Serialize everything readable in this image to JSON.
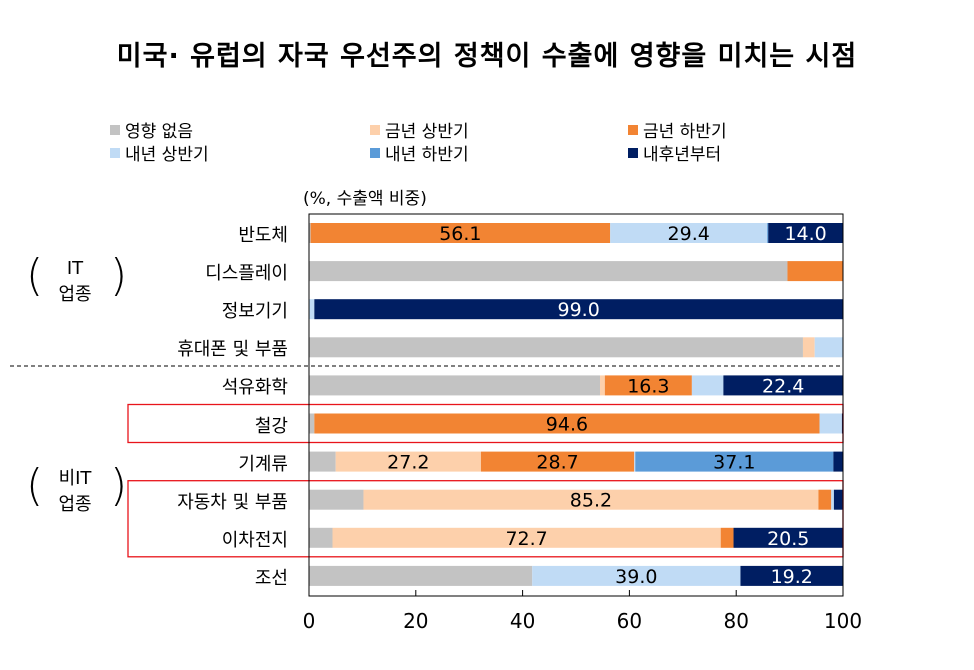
{
  "chart_data": {
    "type": "bar",
    "orientation": "horizontal",
    "stacked": true,
    "title": "미국· 유럽의 자국 우선주의 정책이 수출에 영향을 미치는 시점",
    "unit_label": "(%, 수출액 비중)",
    "xlim": [
      0,
      100
    ],
    "xticks": [
      0,
      20,
      40,
      60,
      80,
      100
    ],
    "grid": false,
    "legend_position": "top",
    "categories": [
      "반도체",
      "디스플레이",
      "정보기기",
      "휴대폰 및 부품",
      "석유화학",
      "철강",
      "기계류",
      "자동차 및 부품",
      "이차전지",
      "조선"
    ],
    "groups": [
      {
        "label_line1": "IT",
        "label_line2": "업종",
        "categories": [
          "반도체",
          "디스플레이",
          "정보기기",
          "휴대폰 및 부품"
        ]
      },
      {
        "label_line1": "비IT",
        "label_line2": "업종",
        "categories": [
          "석유화학",
          "철강",
          "기계류",
          "자동차 및 부품",
          "이차전지",
          "조선"
        ]
      }
    ],
    "highlighted": [
      "철강",
      "자동차 및 부품",
      "이차전지"
    ],
    "series": [
      {
        "name": "영향 없음",
        "color": "#c3c3c3",
        "values": [
          0.3,
          89.6,
          0,
          92.5,
          54.5,
          1.0,
          5.0,
          10.2,
          4.4,
          41.8
        ]
      },
      {
        "name": "금년 상반기",
        "color": "#fdd0ab",
        "values": [
          0,
          0,
          0,
          2.2,
          0.9,
          0,
          27.2,
          85.2,
          72.7,
          0
        ]
      },
      {
        "name": "금년 하반기",
        "color": "#f28433",
        "values": [
          56.1,
          10.4,
          0,
          0,
          16.3,
          94.6,
          28.7,
          2.4,
          2.4,
          0
        ]
      },
      {
        "name": "내년 상반기",
        "color": "#c0dbf5",
        "values": [
          29.4,
          0,
          1.0,
          5.3,
          5.9,
          4.2,
          0.2,
          0.5,
          0,
          39.0
        ]
      },
      {
        "name": "내년 하반기",
        "color": "#5b9bd8",
        "values": [
          0.2,
          0,
          0,
          0,
          0,
          0,
          37.1,
          0,
          0,
          0
        ]
      },
      {
        "name": "내후년부터",
        "color": "#001e62",
        "values": [
          14.0,
          0,
          99.0,
          0,
          22.4,
          0.2,
          1.8,
          1.7,
          20.5,
          19.2
        ]
      }
    ],
    "data_labels": [
      {
        "category": "반도체",
        "series": "금년 하반기",
        "text": "56.1"
      },
      {
        "category": "반도체",
        "series": "내년 상반기",
        "text": "29.4"
      },
      {
        "category": "반도체",
        "series": "내후년부터",
        "text": "14.0"
      },
      {
        "category": "정보기기",
        "series": "내후년부터",
        "text": "99.0"
      },
      {
        "category": "석유화학",
        "series": "금년 하반기",
        "text": "16.3"
      },
      {
        "category": "석유화학",
        "series": "내후년부터",
        "text": "22.4"
      },
      {
        "category": "철강",
        "series": "금년 하반기",
        "text": "94.6"
      },
      {
        "category": "기계류",
        "series": "금년 상반기",
        "text": "27.2"
      },
      {
        "category": "기계류",
        "series": "금년 하반기",
        "text": "28.7"
      },
      {
        "category": "기계류",
        "series": "내년 하반기",
        "text": "37.1"
      },
      {
        "category": "자동차 및 부품",
        "series": "금년 상반기",
        "text": "85.2"
      },
      {
        "category": "이차전지",
        "series": "금년 상반기",
        "text": "72.7"
      },
      {
        "category": "이차전지",
        "series": "내후년부터",
        "text": "20.5"
      },
      {
        "category": "조선",
        "series": "내년 상반기",
        "text": "39.0"
      },
      {
        "category": "조선",
        "series": "내후년부터",
        "text": "19.2"
      }
    ]
  }
}
